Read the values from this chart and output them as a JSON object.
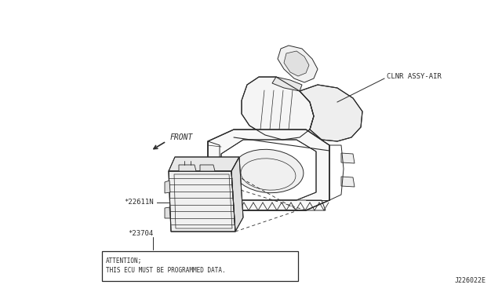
{
  "bg_color": "#ffffff",
  "line_color": "#2a2a2a",
  "diagram_id": "J226022E",
  "label_clnr": "CLNR ASSY-AIR",
  "label_front": "FRONT",
  "label_22611n": "*22611N",
  "label_23704": "*23704",
  "attention_line1": "ATTENTION;",
  "attention_line2": "THIS ECU MUST BE PROGRAMMED DATA.",
  "figsize": [
    6.4,
    3.72
  ],
  "dpi": 100
}
